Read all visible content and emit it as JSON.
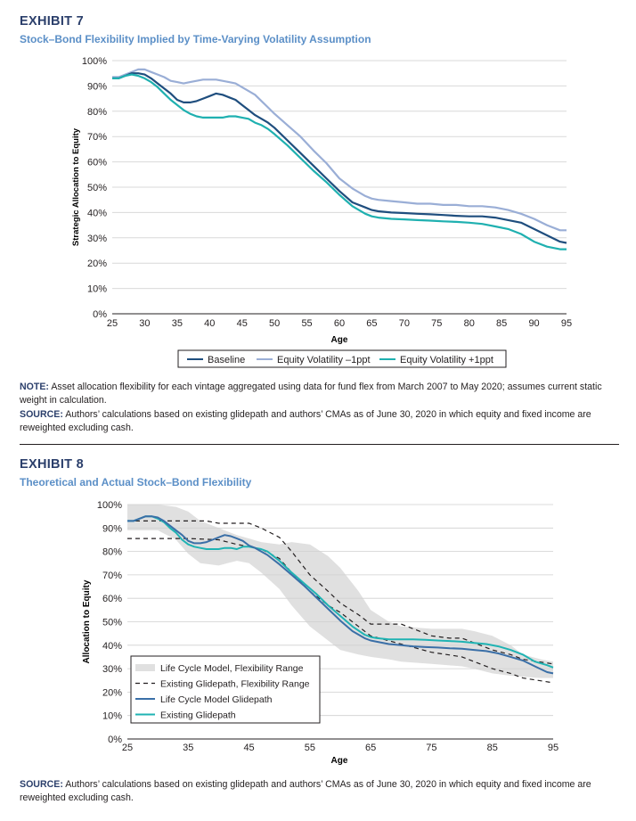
{
  "exhibit7": {
    "label": "EXHIBIT 7",
    "title": "Stock–Bond Flexibility Implied by Time-Varying Volatility Assumption",
    "note_label": "NOTE:",
    "note_text": " Asset allocation flexibility for each vintage aggregated using data for fund flex from March 2007 to May 2020; assumes current static weight in calculation.",
    "source_label": "SOURCE:",
    "source_text": " Authors’ calculations based on existing glidepath and authors’ CMAs as of June 30, 2020 in which equity and fixed income are reweighted excluding cash."
  },
  "exhibit8": {
    "label": "EXHIBIT 8",
    "title": "Theoretical and Actual Stock–Bond Flexibility",
    "source_label": "SOURCE:",
    "source_text": " Authors’ calculations based on existing glidepath and authors’ CMAs as of June 30, 2020 in which equity and fixed income are reweighted excluding cash."
  },
  "colors": {
    "baseline": "#1f4e7e",
    "vol_minus": "#9aaed6",
    "vol_plus": "#1fb0b0",
    "lifecycle": "#3a6fa7",
    "existing": "#1fb3b3",
    "band": "#e0e0e0",
    "dashed": "#231f20"
  },
  "chart_data": [
    {
      "type": "line",
      "title": "Stock–Bond Flexibility Implied by Time-Varying Volatility Assumption",
      "xlabel": "Age",
      "ylabel": "Strategic Allocation to Equity",
      "xlim": [
        25,
        95
      ],
      "ylim": [
        0,
        100
      ],
      "x_ticks": [
        "25",
        "30",
        "35",
        "40",
        "45",
        "50",
        "55",
        "60",
        "65",
        "70",
        "75",
        "80",
        "85",
        "90",
        "95"
      ],
      "y_ticks": [
        "0%",
        "10%",
        "20%",
        "30%",
        "40%",
        "50%",
        "60%",
        "70%",
        "80%",
        "90%",
        "100%"
      ],
      "grid": "horizontal",
      "legend_position": "bottom",
      "series": [
        {
          "name": "Baseline",
          "x": [
            25,
            26,
            27,
            28,
            29,
            30,
            31,
            32,
            33,
            34,
            35,
            36,
            37,
            38,
            39,
            40,
            41,
            42,
            43,
            44,
            45,
            46,
            47,
            48,
            49,
            50,
            52,
            54,
            56,
            58,
            60,
            62,
            64,
            65,
            66,
            68,
            70,
            72,
            74,
            76,
            78,
            80,
            82,
            84,
            86,
            88,
            90,
            92,
            94,
            95
          ],
          "y": [
            93,
            93,
            94,
            95,
            95,
            94.5,
            93,
            91,
            89,
            87,
            84.5,
            83.5,
            83.5,
            84,
            85,
            86,
            87,
            86.5,
            85.5,
            84.5,
            82.5,
            80.5,
            78.5,
            77,
            75.5,
            73.5,
            68.5,
            63.5,
            58.5,
            53.5,
            48.5,
            44,
            42,
            41,
            40.5,
            40,
            39.8,
            39.5,
            39.3,
            39,
            38.7,
            38.5,
            38.5,
            38,
            37,
            36,
            33.5,
            31,
            28.5,
            28
          ]
        },
        {
          "name": "Equity Volatility –1ppt",
          "x": [
            25,
            26,
            27,
            28,
            29,
            30,
            31,
            32,
            33,
            34,
            35,
            36,
            37,
            38,
            39,
            40,
            41,
            42,
            43,
            44,
            45,
            46,
            47,
            48,
            49,
            50,
            52,
            54,
            56,
            58,
            60,
            62,
            64,
            65,
            66,
            68,
            70,
            72,
            74,
            76,
            78,
            80,
            82,
            84,
            86,
            88,
            90,
            92,
            94,
            95
          ],
          "y": [
            93.5,
            93.5,
            94.5,
            95.5,
            96.5,
            96.5,
            95.5,
            94.5,
            93.5,
            92,
            91.5,
            91,
            91.5,
            92,
            92.5,
            92.5,
            92.5,
            92,
            91.5,
            91,
            89.5,
            88,
            86.5,
            84,
            81.5,
            79,
            74.5,
            70,
            64.5,
            59.5,
            53.5,
            49.5,
            46.5,
            45.5,
            45,
            44.5,
            44,
            43.5,
            43.5,
            43,
            43,
            42.5,
            42.5,
            42,
            41,
            39.5,
            37.5,
            35,
            33,
            33
          ]
        },
        {
          "name": "Equity Volatility +1ppt",
          "x": [
            25,
            26,
            27,
            28,
            29,
            30,
            31,
            32,
            33,
            34,
            35,
            36,
            37,
            38,
            39,
            40,
            41,
            42,
            43,
            44,
            45,
            46,
            47,
            48,
            49,
            50,
            52,
            54,
            56,
            58,
            60,
            62,
            64,
            65,
            66,
            68,
            70,
            72,
            74,
            76,
            78,
            80,
            82,
            84,
            86,
            88,
            90,
            92,
            94,
            95
          ],
          "y": [
            93,
            93,
            94,
            94.5,
            94,
            93,
            91.5,
            89.5,
            87,
            84.5,
            82.5,
            80.5,
            79,
            78,
            77.5,
            77.5,
            77.5,
            77.5,
            78,
            78,
            77.5,
            77,
            75.5,
            74.5,
            73,
            71,
            66.5,
            61.5,
            56.5,
            52,
            47,
            42.5,
            39.5,
            38.5,
            38,
            37.5,
            37.3,
            37,
            36.8,
            36.5,
            36.3,
            36,
            35.5,
            34.5,
            33.5,
            31.5,
            28.5,
            26.5,
            25.5,
            25.5
          ]
        }
      ]
    },
    {
      "type": "line",
      "title": "Theoretical and Actual Stock–Bond Flexibility",
      "xlabel": "Age",
      "ylabel": "Allocation to Equity",
      "xlim": [
        25,
        95
      ],
      "ylim": [
        0,
        100
      ],
      "x_ticks": [
        "25",
        "35",
        "45",
        "55",
        "65",
        "75",
        "85",
        "95"
      ],
      "y_ticks": [
        "0%",
        "10%",
        "20%",
        "30%",
        "40%",
        "50%",
        "60%",
        "70%",
        "80%",
        "90%",
        "100%"
      ],
      "grid": "horizontal",
      "legend_position": "bottom-left",
      "series": [
        {
          "name": "Life Cycle Model, Flexibility Range",
          "kind": "band",
          "x": [
            25,
            30,
            33,
            35,
            37,
            40,
            43,
            45,
            47,
            50,
            52,
            55,
            58,
            60,
            63,
            65,
            68,
            70,
            75,
            80,
            82,
            85,
            88,
            90,
            93,
            95
          ],
          "upper": [
            100,
            100,
            99,
            97,
            93,
            90,
            87,
            85.5,
            84,
            83,
            84,
            83,
            78,
            73,
            63,
            55,
            50,
            48,
            47,
            47,
            46,
            44,
            40,
            36,
            34,
            33
          ],
          "lower": [
            89,
            89,
            85,
            79,
            75,
            74,
            76,
            75,
            71,
            64,
            57,
            48,
            42,
            38,
            36,
            35,
            34,
            33,
            32,
            31,
            30,
            28,
            27,
            26.5,
            26,
            26
          ]
        },
        {
          "name": "Existing Glidepath, Flexibility Range",
          "kind": "dashed-upper",
          "x": [
            25,
            30,
            35,
            38,
            40,
            45,
            47,
            50,
            52,
            55,
            58,
            60,
            63,
            65,
            70,
            75,
            78,
            80,
            85,
            88,
            90,
            95
          ],
          "y": [
            93,
            93,
            93,
            93,
            92,
            92,
            90,
            86,
            80,
            70,
            63,
            58,
            53,
            49,
            49,
            44,
            43,
            43,
            38,
            36,
            34,
            32
          ]
        },
        {
          "name": "Existing Glidepath, Flexibility Range",
          "kind": "dashed-lower",
          "x": [
            25,
            30,
            35,
            40,
            43,
            45,
            47,
            50,
            52,
            55,
            58,
            60,
            63,
            65,
            70,
            75,
            80,
            85,
            88,
            90,
            95
          ],
          "y": [
            85.5,
            85.5,
            85.5,
            85,
            83,
            82,
            81,
            77,
            71,
            63,
            57,
            54,
            48,
            44,
            40.5,
            37,
            35,
            30,
            28,
            26,
            24
          ]
        },
        {
          "name": "Life Cycle Model Glidepath",
          "x": [
            25,
            26,
            27,
            28,
            29,
            30,
            31,
            32,
            33,
            34,
            35,
            36,
            37,
            38,
            39,
            40,
            41,
            42,
            43,
            44,
            45,
            46,
            47,
            48,
            50,
            52,
            54,
            56,
            58,
            60,
            62,
            64,
            65,
            66,
            68,
            70,
            72,
            74,
            76,
            78,
            80,
            82,
            84,
            86,
            88,
            90,
            92,
            94,
            95
          ],
          "y": [
            93,
            93,
            94,
            95,
            95,
            94.5,
            93,
            91,
            89,
            87,
            84.5,
            83.5,
            83.5,
            84,
            85,
            86,
            87,
            86.5,
            85.5,
            84.5,
            82.5,
            81.5,
            80,
            78.5,
            74.5,
            70,
            65.5,
            60.5,
            55.5,
            50.5,
            46,
            43,
            42,
            41.5,
            40.5,
            40,
            39.5,
            39.2,
            39,
            38.7,
            38.5,
            38,
            37.5,
            36.5,
            35,
            33.5,
            31,
            28.5,
            28
          ]
        },
        {
          "name": "Existing Glidepath",
          "x": [
            25,
            26,
            27,
            28,
            29,
            30,
            31,
            32,
            33,
            34,
            35,
            36,
            37,
            38,
            39,
            40,
            41,
            42,
            43,
            44,
            45,
            46,
            47,
            48,
            50,
            52,
            54,
            56,
            58,
            60,
            62,
            64,
            65,
            66,
            68,
            70,
            72,
            74,
            76,
            78,
            80,
            82,
            84,
            86,
            88,
            90,
            92,
            94,
            95
          ],
          "y": [
            93,
            93,
            94,
            95,
            95,
            94,
            92.5,
            90,
            88,
            85,
            83,
            82,
            81.5,
            81,
            81,
            81,
            81.5,
            81.5,
            81,
            82,
            82,
            81.5,
            81,
            80,
            76,
            71,
            66.5,
            62,
            57,
            52.5,
            48,
            44.5,
            43.5,
            43,
            42.5,
            42.5,
            42.5,
            42.3,
            42,
            41.8,
            41.5,
            41,
            40.5,
            39.5,
            38,
            36,
            33,
            31.5,
            30.5
          ]
        }
      ]
    }
  ]
}
